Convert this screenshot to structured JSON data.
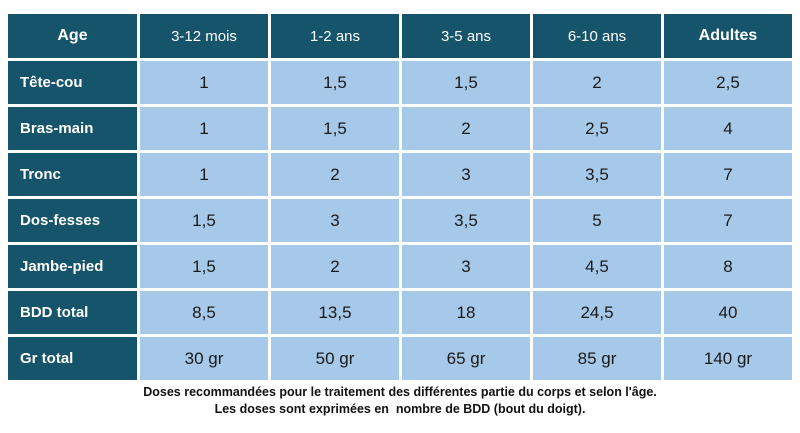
{
  "chart_data": {
    "type": "table",
    "columns": [
      "Age",
      "3-12 mois",
      "1-2 ans",
      "3-5 ans",
      "6-10 ans",
      "Adultes"
    ],
    "rows": [
      [
        "Tête-cou",
        "1",
        "1,5",
        "1,5",
        "2",
        "2,5"
      ],
      [
        "Bras-main",
        "1",
        "1,5",
        "2",
        "2,5",
        "4"
      ],
      [
        "Tronc",
        "1",
        "2",
        "3",
        "3,5",
        "7"
      ],
      [
        "Dos-fesses",
        "1,5",
        "3",
        "3,5",
        "5",
        "7"
      ],
      [
        "Jambe-pied",
        "1,5",
        "2",
        "3",
        "4,5",
        "8"
      ],
      [
        "BDD total",
        "8,5",
        "13,5",
        "18",
        "24,5",
        "40"
      ],
      [
        "Gr total",
        "30 gr",
        "50 gr",
        "65 gr",
        "85 gr",
        "140 gr"
      ]
    ],
    "caption_line1": "Doses recommandées pour le traitement des différentes partie du corps et selon l'âge.",
    "caption_line2": "Les doses sont exprimées en  nombre de BDD (bout du doigt).",
    "layout": "header row and first column dark teal with white text; data cells light blue with dark text; white gridlines"
  },
  "colors": {
    "header_teal": "#15546a",
    "cell_light_blue": "#a6c9e9",
    "gridline": "#ffffff",
    "data_text": "#1a1a1a",
    "caption_text": "#111111"
  }
}
